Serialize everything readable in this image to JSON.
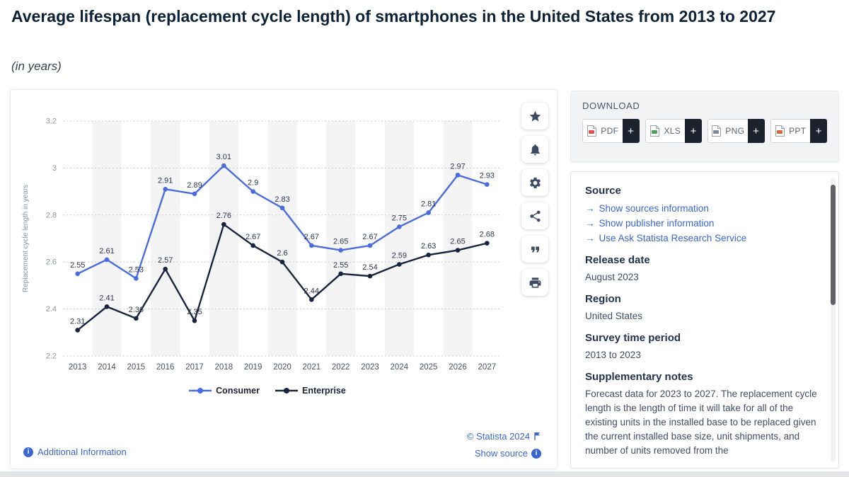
{
  "page": {
    "title": "Average lifespan (replacement cycle length) of smartphones in the United States from 2013 to 2027",
    "subtitle": "(in years)"
  },
  "chart_data": {
    "type": "line",
    "x": [
      2013,
      2014,
      2015,
      2016,
      2017,
      2018,
      2019,
      2020,
      2021,
      2022,
      2023,
      2024,
      2025,
      2026,
      2027
    ],
    "series": [
      {
        "name": "Consumer",
        "color": "#4a6cdf",
        "values": [
          2.55,
          2.61,
          2.53,
          2.91,
          2.89,
          3.01,
          2.9,
          2.83,
          2.67,
          2.65,
          2.67,
          2.75,
          2.81,
          2.97,
          2.93
        ]
      },
      {
        "name": "Enterprise",
        "color": "#18243f",
        "values": [
          2.31,
          2.41,
          2.36,
          2.57,
          2.35,
          2.76,
          2.67,
          2.6,
          2.44,
          2.55,
          2.54,
          2.59,
          2.63,
          2.65,
          2.68
        ]
      }
    ],
    "ylabel": "Replacement cycle length in years",
    "xlabel": "",
    "ylim": [
      2.2,
      3.2
    ],
    "yticks": [
      2.2,
      2.4,
      2.6,
      2.8,
      3,
      3.2
    ],
    "grid": "horizontal-dotted",
    "legend_position": "bottom"
  },
  "toolbar": {
    "icons": [
      "star",
      "bell",
      "gear",
      "share",
      "quote",
      "print"
    ]
  },
  "download": {
    "heading": "DOWNLOAD",
    "buttons": [
      {
        "label": "PDF",
        "type": "pdf"
      },
      {
        "label": "XLS",
        "type": "xls"
      },
      {
        "label": "PNG",
        "type": "png"
      },
      {
        "label": "PPT",
        "type": "ppt"
      }
    ]
  },
  "details": {
    "source_heading": "Source",
    "source_links": [
      "Show sources information",
      "Show publisher information",
      "Use Ask Statista Research Service"
    ],
    "sections": [
      {
        "heading": "Release date",
        "text": "August 2023"
      },
      {
        "heading": "Region",
        "text": "United States"
      },
      {
        "heading": "Survey time period",
        "text": "2013 to 2023"
      },
      {
        "heading": "Supplementary notes",
        "text": "Forecast data for 2023 to 2027. The replacement cycle length is the length of time it will take for all of the existing units in the installed base to be replaced given the current installed base size, unit shipments, and number of units removed from the"
      }
    ]
  },
  "footer": {
    "additional_info": "Additional Information",
    "copyright": "© Statista 2024",
    "show_source": "Show source"
  },
  "colors": {
    "accent_blue": "#3a66d4",
    "consumer_line": "#4a6cdf",
    "enterprise_line": "#18243f"
  }
}
